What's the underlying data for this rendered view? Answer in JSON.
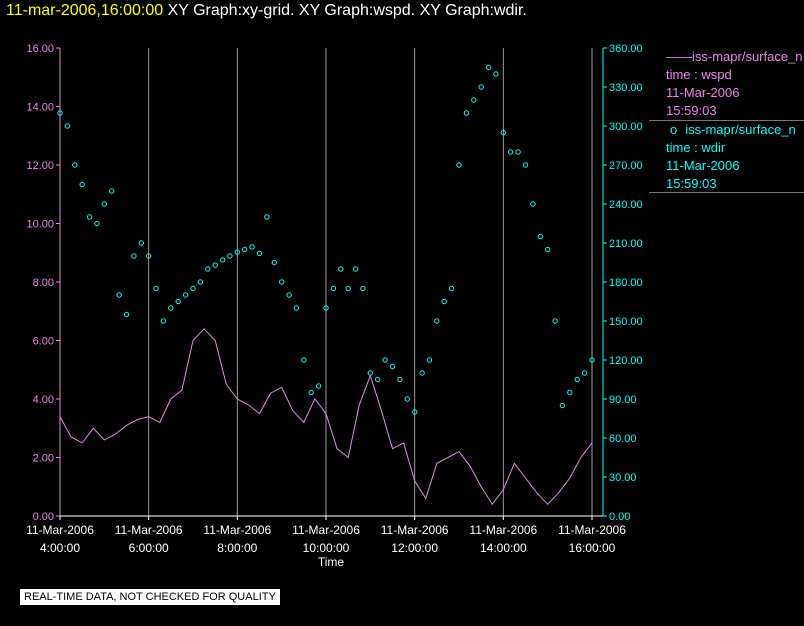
{
  "header": {
    "datetime": "11-mar-2006,16:00:00",
    "graphs": "XY Graph:xy-grid.  XY Graph:wspd.  XY Graph:wdir."
  },
  "legend": [
    {
      "marker": "——",
      "name": "iss-mapr/surface_n",
      "quantity": "time : wspd",
      "date": "11-Mar-2006",
      "time": "15:59:03",
      "color": "#ee82ee"
    },
    {
      "marker": "o",
      "name": "iss-mapr/surface_n",
      "quantity": "time : wdir",
      "date": "11-Mar-2006",
      "time": "15:59:03",
      "color": "#00ffff"
    }
  ],
  "notice": "REAL-TIME DATA, NOT CHECKED FOR QUALITY",
  "chart_data": {
    "type": "line",
    "xlabel": "Time",
    "x_ticks": [
      {
        "date": "11-Mar-2006",
        "time": "4:00:00"
      },
      {
        "date": "11-Mar-2006",
        "time": "6:00:00"
      },
      {
        "date": "11-Mar-2006",
        "time": "8:00:00"
      },
      {
        "date": "11-Mar-2006",
        "time": "10:00:00"
      },
      {
        "date": "11-Mar-2006",
        "time": "12:00:00"
      },
      {
        "date": "11-Mar-2006",
        "time": "14:00:00"
      },
      {
        "date": "11-Mar-2006",
        "time": "16:00:00"
      }
    ],
    "xlim": [
      "11-Mar-2006 04:00",
      "11-Mar-2006 16:00"
    ],
    "left_axis": {
      "ylim": [
        0,
        16
      ],
      "ticks": [
        "0.00",
        "2.00",
        "4.00",
        "6.00",
        "8.00",
        "10.00",
        "12.00",
        "14.00",
        "16.00"
      ],
      "color": "#ee82ee"
    },
    "right_axis": {
      "ylim": [
        0,
        360
      ],
      "ticks": [
        "0.00",
        "30.00",
        "60.00",
        "90.00",
        "120.00",
        "150.00",
        "180.00",
        "210.00",
        "240.00",
        "270.00",
        "300.00",
        "330.00",
        "360.00"
      ],
      "color": "#00ffff"
    },
    "grid": "vertical lines at x ticks",
    "series": [
      {
        "name": "wspd",
        "axis": "left",
        "style": "line",
        "color": "#ee82ee",
        "x": [
          "04:00",
          "04:15",
          "04:30",
          "04:45",
          "05:00",
          "05:15",
          "05:30",
          "05:45",
          "06:00",
          "06:15",
          "06:30",
          "06:45",
          "07:00",
          "07:15",
          "07:30",
          "07:45",
          "08:00",
          "08:15",
          "08:30",
          "08:45",
          "09:00",
          "09:15",
          "09:30",
          "09:45",
          "10:00",
          "10:15",
          "10:30",
          "10:45",
          "11:00",
          "11:15",
          "11:30",
          "11:45",
          "12:00",
          "12:15",
          "12:30",
          "12:45",
          "13:00",
          "13:15",
          "13:30",
          "13:45",
          "14:00",
          "14:15",
          "14:30",
          "14:45",
          "15:00",
          "15:15",
          "15:30",
          "15:45",
          "16:00"
        ],
        "y": [
          3.4,
          2.7,
          2.5,
          3.0,
          2.6,
          2.8,
          3.1,
          3.3,
          3.4,
          3.2,
          4.0,
          4.3,
          6.0,
          6.4,
          6.0,
          4.5,
          4.0,
          3.8,
          3.5,
          4.2,
          4.4,
          3.6,
          3.2,
          4.0,
          3.5,
          2.3,
          2.0,
          3.8,
          4.8,
          3.6,
          2.3,
          2.5,
          1.2,
          0.6,
          1.8,
          2.0,
          2.2,
          1.7,
          1.0,
          0.4,
          0.9,
          1.8,
          1.3,
          0.8,
          0.4,
          0.8,
          1.3,
          2.0,
          2.5
        ]
      },
      {
        "name": "wdir",
        "axis": "right",
        "style": "circles",
        "color": "#00ffff",
        "x": [
          "04:00",
          "04:10",
          "04:20",
          "04:30",
          "04:40",
          "04:50",
          "05:00",
          "05:10",
          "05:20",
          "05:30",
          "05:40",
          "05:50",
          "06:00",
          "06:10",
          "06:20",
          "06:30",
          "06:40",
          "06:50",
          "07:00",
          "07:10",
          "07:20",
          "07:30",
          "07:40",
          "07:50",
          "08:00",
          "08:10",
          "08:20",
          "08:30",
          "08:40",
          "08:50",
          "09:00",
          "09:10",
          "09:20",
          "09:30",
          "09:40",
          "09:50",
          "10:00",
          "10:10",
          "10:20",
          "10:30",
          "10:40",
          "10:50",
          "11:00",
          "11:10",
          "11:20",
          "11:30",
          "11:40",
          "11:50",
          "12:00",
          "12:10",
          "12:20",
          "12:30",
          "12:40",
          "12:50",
          "13:00",
          "13:10",
          "13:20",
          "13:30",
          "13:40",
          "13:50",
          "14:00",
          "14:10",
          "14:20",
          "14:30",
          "14:40",
          "14:50",
          "15:00",
          "15:10",
          "15:20",
          "15:30",
          "15:40",
          "15:50",
          "16:00"
        ],
        "y": [
          310,
          300,
          270,
          255,
          230,
          225,
          240,
          250,
          170,
          155,
          200,
          210,
          200,
          175,
          150,
          160,
          165,
          170,
          175,
          180,
          190,
          193,
          197,
          200,
          203,
          205,
          207,
          202,
          230,
          195,
          180,
          170,
          160,
          120,
          95,
          100,
          160,
          175,
          190,
          175,
          190,
          175,
          110,
          105,
          120,
          115,
          105,
          90,
          80,
          110,
          120,
          150,
          165,
          175,
          270,
          310,
          320,
          330,
          345,
          340,
          295,
          280,
          280,
          270,
          240,
          215,
          205,
          150,
          85,
          95,
          105,
          110,
          120
        ]
      }
    ]
  }
}
